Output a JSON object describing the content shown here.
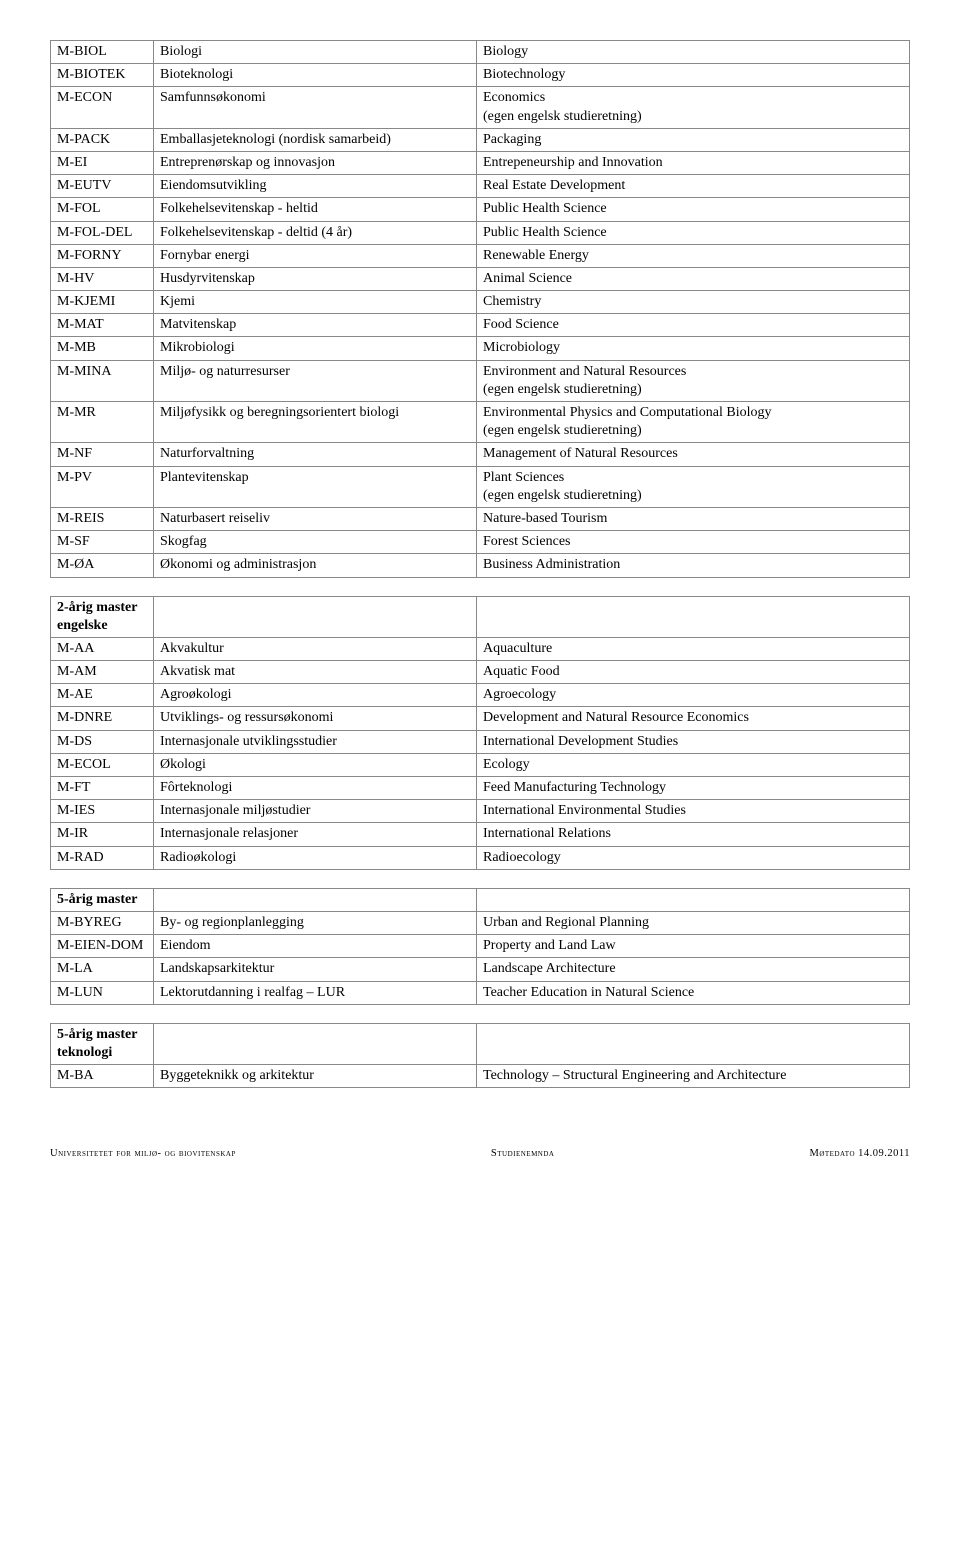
{
  "table1": {
    "rows": [
      [
        "M-BIOL",
        "Biologi",
        "Biology"
      ],
      [
        "M-BIOTEK",
        "Bioteknologi",
        "Biotechnology"
      ],
      [
        "M-ECON",
        "Samfunnsøkonomi",
        "Economics\n(egen engelsk studieretning)"
      ],
      [
        "M-PACK",
        "Emballasjeteknologi (nordisk samarbeid)",
        "Packaging"
      ],
      [
        "M-EI",
        "Entreprenørskap og innovasjon",
        "Entrepeneurship and Innovation"
      ],
      [
        "M-EUTV",
        "Eiendomsutvikling",
        "Real Estate Development"
      ],
      [
        "M-FOL",
        "Folkehelsevitenskap - heltid",
        "Public Health Science"
      ],
      [
        "M-FOL-DEL",
        "Folkehelsevitenskap - deltid (4 år)",
        "Public Health Science"
      ],
      [
        "M-FORNY",
        "Fornybar energi",
        "Renewable Energy"
      ],
      [
        "M-HV",
        "Husdyrvitenskap",
        "Animal Science"
      ],
      [
        "M-KJEMI",
        "Kjemi",
        "Chemistry"
      ],
      [
        "M-MAT",
        "Matvitenskap",
        "Food Science"
      ],
      [
        "M-MB",
        "Mikrobiologi",
        "Microbiology"
      ],
      [
        "M-MINA",
        "Miljø- og naturresurser",
        "Environment and Natural Resources\n(egen engelsk studieretning)"
      ],
      [
        "M-MR",
        "Miljøfysikk og beregningsorientert biologi",
        "Environmental Physics and Computational Biology\n(egen engelsk studieretning)"
      ],
      [
        "M-NF",
        "Naturforvaltning",
        "Management of Natural Resources"
      ],
      [
        "M-PV",
        "Plantevitenskap",
        "Plant Sciences\n(egen engelsk studieretning)"
      ],
      [
        "M-REIS",
        "Naturbasert reiseliv",
        "Nature-based Tourism"
      ],
      [
        "M-SF",
        "Skogfag",
        "Forest Sciences"
      ],
      [
        "M-ØA",
        "Økonomi og administrasjon",
        "Business Administration"
      ]
    ]
  },
  "table2": {
    "header": [
      "2-årig master engelske",
      "",
      ""
    ],
    "rows": [
      [
        "M-AA",
        "Akvakultur",
        "Aquaculture"
      ],
      [
        "M-AM",
        "Akvatisk mat",
        "Aquatic Food"
      ],
      [
        "M-AE",
        "Agroøkologi",
        "Agroecology"
      ],
      [
        "M-DNRE",
        "Utviklings- og ressursøkonomi",
        "Development and Natural Resource Economics"
      ],
      [
        "M-DS",
        "Internasjonale utviklingsstudier",
        "International Development Studies"
      ],
      [
        "M-ECOL",
        "Økologi",
        "Ecology"
      ],
      [
        "M-FT",
        "Fôrteknologi",
        "Feed Manufacturing Technology"
      ],
      [
        "M-IES",
        "Internasjonale miljøstudier",
        "International Environmental Studies"
      ],
      [
        "M-IR",
        "Internasjonale relasjoner",
        "International Relations"
      ],
      [
        "M-RAD",
        "Radioøkologi",
        "Radioecology"
      ]
    ]
  },
  "table3": {
    "header": [
      "5-årig master",
      "",
      ""
    ],
    "rows": [
      [
        "M-BYREG",
        "By- og regionplanlegging",
        "Urban and Regional Planning"
      ],
      [
        "M-EIEN-DOM",
        "Eiendom",
        "Property and Land Law"
      ],
      [
        "M-LA",
        "Landskapsarkitektur",
        "Landscape Architecture"
      ],
      [
        "M-LUN",
        "Lektorutdanning i realfag – LUR",
        "Teacher Education in Natural Science"
      ]
    ]
  },
  "table4": {
    "header": [
      "5-årig master teknologi",
      "",
      ""
    ],
    "rows": [
      [
        "M-BA",
        "Byggeteknikk og arkitektur",
        "Technology – Structural Engineering and Architecture"
      ]
    ]
  },
  "footer": {
    "left": "Universitetet for miljø- og biovitenskap",
    "center": "Studienemnda",
    "right": "Møtedato 14.09.2011"
  }
}
